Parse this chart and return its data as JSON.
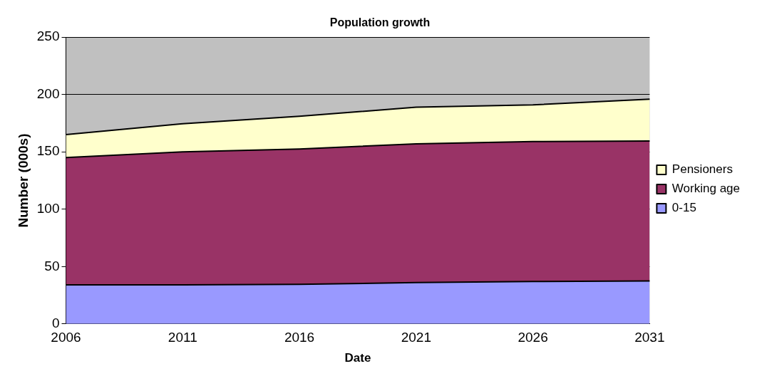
{
  "chart_data": {
    "type": "area",
    "title": "Population growth",
    "xlabel": "Date",
    "ylabel": "Number (000s)",
    "categories": [
      "2006",
      "2011",
      "2016",
      "2021",
      "2026",
      "2031"
    ],
    "stacked": true,
    "series": [
      {
        "name": "0-15",
        "color": "#9999ff",
        "values": [
          34,
          34,
          34.5,
          36,
          37,
          37.5
        ]
      },
      {
        "name": "Working age",
        "color": "#993366",
        "values": [
          111,
          116,
          118,
          121,
          122,
          122
        ]
      },
      {
        "name": "Pensioners",
        "color": "#ffffcc",
        "values": [
          20,
          24.5,
          28.5,
          32,
          32,
          36.5
        ]
      }
    ],
    "ylim": [
      0,
      250
    ],
    "yticks": [
      0,
      50,
      100,
      150,
      200,
      250
    ],
    "grid": "y",
    "legend": "right"
  }
}
